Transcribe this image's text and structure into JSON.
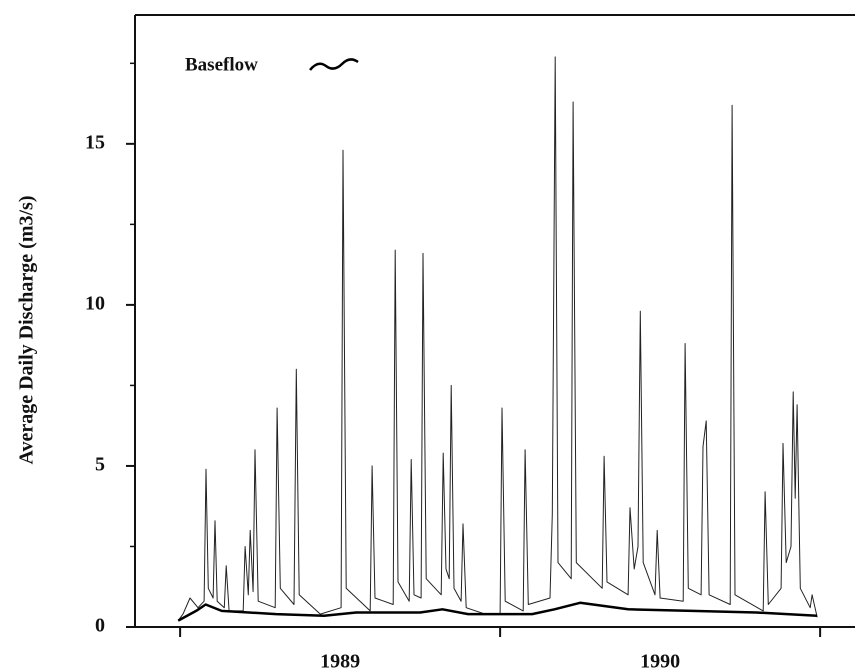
{
  "chart_data": {
    "type": "line",
    "y_label": "Average Daily Discharge (m3/s)",
    "xlim": [
      1988.859,
      1991.109
    ],
    "xticks": [
      1989,
      1990,
      1991
    ],
    "x_labels": [
      {
        "value": 1989.5,
        "label": "1989"
      },
      {
        "value": 1990.5,
        "label": "1990"
      }
    ],
    "ylim": [
      0,
      19
    ],
    "yticks": [
      0,
      5,
      10,
      15
    ],
    "yticks_minor": [
      2.5,
      7.5,
      12.5,
      17.5
    ],
    "legend": "upper left",
    "series": [
      {
        "color": "#222",
        "x": [
          1988.994,
          1989.009,
          1989.031,
          1989.056,
          1989.075,
          1989.081,
          1989.088,
          1989.103,
          1989.109,
          1989.116,
          1989.138,
          1989.144,
          1989.153,
          1989.197,
          1989.203,
          1989.213,
          1989.219,
          1989.228,
          1989.234,
          1989.244,
          1989.297,
          1989.303,
          1989.313,
          1989.356,
          1989.363,
          1989.372,
          1989.438,
          1989.503,
          1989.509,
          1989.519,
          1989.594,
          1989.6,
          1989.609,
          1989.666,
          1989.672,
          1989.681,
          1989.716,
          1989.722,
          1989.731,
          1989.753,
          1989.759,
          1989.769,
          1989.816,
          1989.822,
          1989.831,
          1989.841,
          1989.847,
          1989.856,
          1989.878,
          1989.884,
          1989.894,
          1989.953,
          1990.0,
          1990.006,
          1990.016,
          1990.072,
          1990.078,
          1990.088,
          1990.156,
          1990.163,
          1990.172,
          1990.181,
          1990.222,
          1990.228,
          1990.238,
          1990.319,
          1990.325,
          1990.334,
          1990.4,
          1990.406,
          1990.419,
          1990.431,
          1990.438,
          1990.447,
          1990.484,
          1990.491,
          1990.5,
          1990.572,
          1990.578,
          1990.588,
          1990.628,
          1990.634,
          1990.644,
          1990.653,
          1990.719,
          1990.725,
          1990.734,
          1990.822,
          1990.828,
          1990.838,
          1990.878,
          1990.884,
          1990.894,
          1990.909,
          1990.916,
          1990.922,
          1990.928,
          1990.938,
          1990.969,
          1990.975,
          1990.991
        ],
        "values": [
          0.2,
          0.4,
          0.9,
          0.6,
          0.8,
          4.9,
          1.2,
          0.9,
          3.3,
          0.8,
          0.6,
          1.9,
          0.5,
          0.5,
          2.5,
          1.0,
          3.0,
          1.1,
          5.5,
          0.8,
          0.6,
          6.8,
          1.2,
          0.7,
          8.0,
          1.0,
          0.4,
          0.6,
          14.8,
          1.2,
          0.5,
          5.0,
          0.9,
          0.7,
          11.7,
          1.4,
          0.8,
          5.2,
          1.0,
          0.9,
          11.6,
          1.5,
          1.0,
          5.4,
          1.8,
          1.5,
          7.5,
          1.2,
          0.8,
          3.2,
          0.6,
          0.4,
          0.4,
          6.8,
          0.8,
          0.5,
          5.5,
          0.7,
          0.9,
          3.5,
          17.7,
          2.0,
          1.5,
          16.3,
          2.0,
          1.2,
          5.3,
          1.4,
          1.0,
          3.7,
          1.8,
          2.5,
          9.8,
          2.0,
          1.0,
          3.0,
          0.9,
          0.8,
          8.8,
          1.2,
          1.0,
          5.6,
          6.4,
          1.0,
          0.7,
          16.2,
          1.0,
          0.5,
          4.2,
          0.7,
          1.2,
          5.7,
          2.0,
          2.5,
          7.3,
          4.0,
          6.9,
          1.2,
          0.6,
          1.0,
          0.3
        ]
      },
      {
        "name": "Baseflow",
        "color": "#000",
        "x": [
          1988.994,
          1989.05,
          1989.08,
          1989.13,
          1989.3,
          1989.45,
          1989.55,
          1989.75,
          1989.82,
          1989.9,
          1990.1,
          1990.17,
          1990.25,
          1990.4,
          1990.6,
          1990.8,
          1990.99
        ],
        "values": [
          0.2,
          0.5,
          0.7,
          0.5,
          0.4,
          0.35,
          0.45,
          0.45,
          0.55,
          0.4,
          0.4,
          0.55,
          0.75,
          0.55,
          0.5,
          0.45,
          0.35
        ]
      }
    ]
  }
}
